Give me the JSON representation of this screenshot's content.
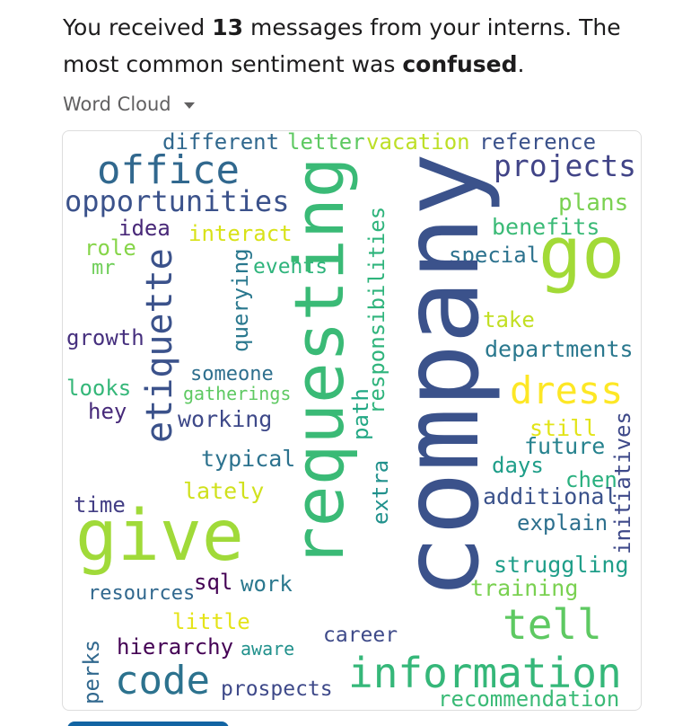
{
  "summary": {
    "prefix": "You received ",
    "count": "13",
    "middle": " messages from your interns. The most common sentiment was ",
    "sentiment": "confused",
    "suffix": "."
  },
  "view_select": {
    "label": "Word Cloud",
    "icon": "chevron-down-icon"
  },
  "word_cloud": {
    "words": [
      {
        "text": "different",
        "color": "#31688e"
      },
      {
        "text": "letter",
        "color": "#5ec962"
      },
      {
        "text": "vacation",
        "color": "#bddf26"
      },
      {
        "text": "reference",
        "color": "#3b528b"
      },
      {
        "text": "office",
        "color": "#31688e"
      },
      {
        "text": "projects",
        "color": "#414487"
      },
      {
        "text": "opportunities",
        "color": "#3b528b"
      },
      {
        "text": "plans",
        "color": "#7ad151"
      },
      {
        "text": "idea",
        "color": "#482878"
      },
      {
        "text": "interact",
        "color": "#d8e219"
      },
      {
        "text": "benefits",
        "color": "#3aba76"
      },
      {
        "text": "role",
        "color": "#86d549"
      },
      {
        "text": "mr",
        "color": "#6ece58"
      },
      {
        "text": "events",
        "color": "#2fb47c"
      },
      {
        "text": "special",
        "color": "#2c728e"
      },
      {
        "text": "go",
        "color": "#a2da37"
      },
      {
        "text": "take",
        "color": "#c2df23"
      },
      {
        "text": "growth",
        "color": "#46307e"
      },
      {
        "text": "departments",
        "color": "#2a788e"
      },
      {
        "text": "someone",
        "color": "#2e6f8e"
      },
      {
        "text": "looks",
        "color": "#35b779"
      },
      {
        "text": "gatherings",
        "color": "#5ec962"
      },
      {
        "text": "dress",
        "color": "#fde725"
      },
      {
        "text": "hey",
        "color": "#472a7a"
      },
      {
        "text": "working",
        "color": "#3e4989"
      },
      {
        "text": "still",
        "color": "#e2e418"
      },
      {
        "text": "future",
        "color": "#26828e"
      },
      {
        "text": "typical",
        "color": "#2c728e"
      },
      {
        "text": "days",
        "color": "#1f9e89"
      },
      {
        "text": "chen",
        "color": "#2ab07f"
      },
      {
        "text": "lately",
        "color": "#d0e11c"
      },
      {
        "text": "time",
        "color": "#433e85"
      },
      {
        "text": "additional",
        "color": "#3b528b"
      },
      {
        "text": "explain",
        "color": "#2d708e"
      },
      {
        "text": "give",
        "color": "#a0da39"
      },
      {
        "text": "struggling",
        "color": "#1f9e89"
      },
      {
        "text": "resources",
        "color": "#31688e"
      },
      {
        "text": "sql",
        "color": "#440154"
      },
      {
        "text": "work",
        "color": "#2a788e"
      },
      {
        "text": "training",
        "color": "#7ad151"
      },
      {
        "text": "little",
        "color": "#e5e419"
      },
      {
        "text": "tell",
        "color": "#5ec962"
      },
      {
        "text": "hierarchy",
        "color": "#440154"
      },
      {
        "text": "aware",
        "color": "#21918c"
      },
      {
        "text": "career",
        "color": "#3e4a89"
      },
      {
        "text": "code",
        "color": "#2c728e"
      },
      {
        "text": "prospects",
        "color": "#3e4989"
      },
      {
        "text": "information",
        "color": "#35b779"
      },
      {
        "text": "recommendation",
        "color": "#3aba76"
      },
      {
        "text": "etiquette",
        "color": "#3b528b"
      },
      {
        "text": "querying",
        "color": "#2a788e"
      },
      {
        "text": "requesting",
        "color": "#3aba76"
      },
      {
        "text": "responsibilities",
        "color": "#2fb47c"
      },
      {
        "text": "path",
        "color": "#22a884"
      },
      {
        "text": "extra",
        "color": "#21918c"
      },
      {
        "text": "company",
        "color": "#3b528b"
      },
      {
        "text": "initiatives",
        "color": "#3e4989"
      },
      {
        "text": "perks",
        "color": "#31688e"
      }
    ]
  }
}
